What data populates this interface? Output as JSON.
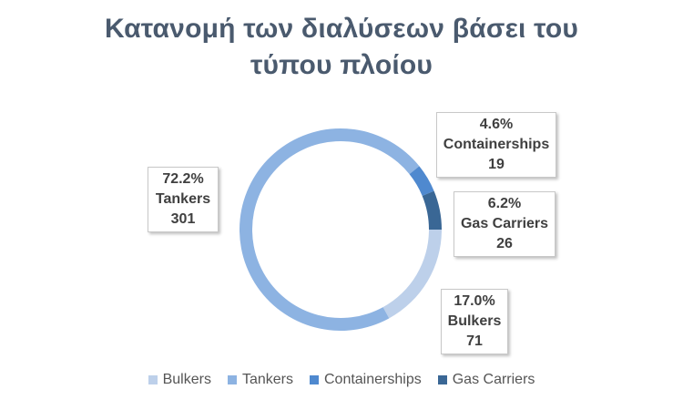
{
  "chart_data": {
    "type": "pie",
    "title_lines": [
      "Κατανομή των διαλύσεων βάσει του",
      "τύπου πλοίου"
    ],
    "donut": true,
    "legend_position": "bottom",
    "slices": [
      {
        "name": "Bulkers",
        "value": 71,
        "percent": "17.0%",
        "color": "#bdd0ea"
      },
      {
        "name": "Tankers",
        "value": 301,
        "percent": "72.2%",
        "color": "#8db3e2"
      },
      {
        "name": "Containerships",
        "value": 19,
        "percent": "4.6%",
        "color": "#4f89cf"
      },
      {
        "name": "Gas Carriers",
        "value": 26,
        "percent": "6.2%",
        "color": "#3a6795"
      }
    ]
  }
}
